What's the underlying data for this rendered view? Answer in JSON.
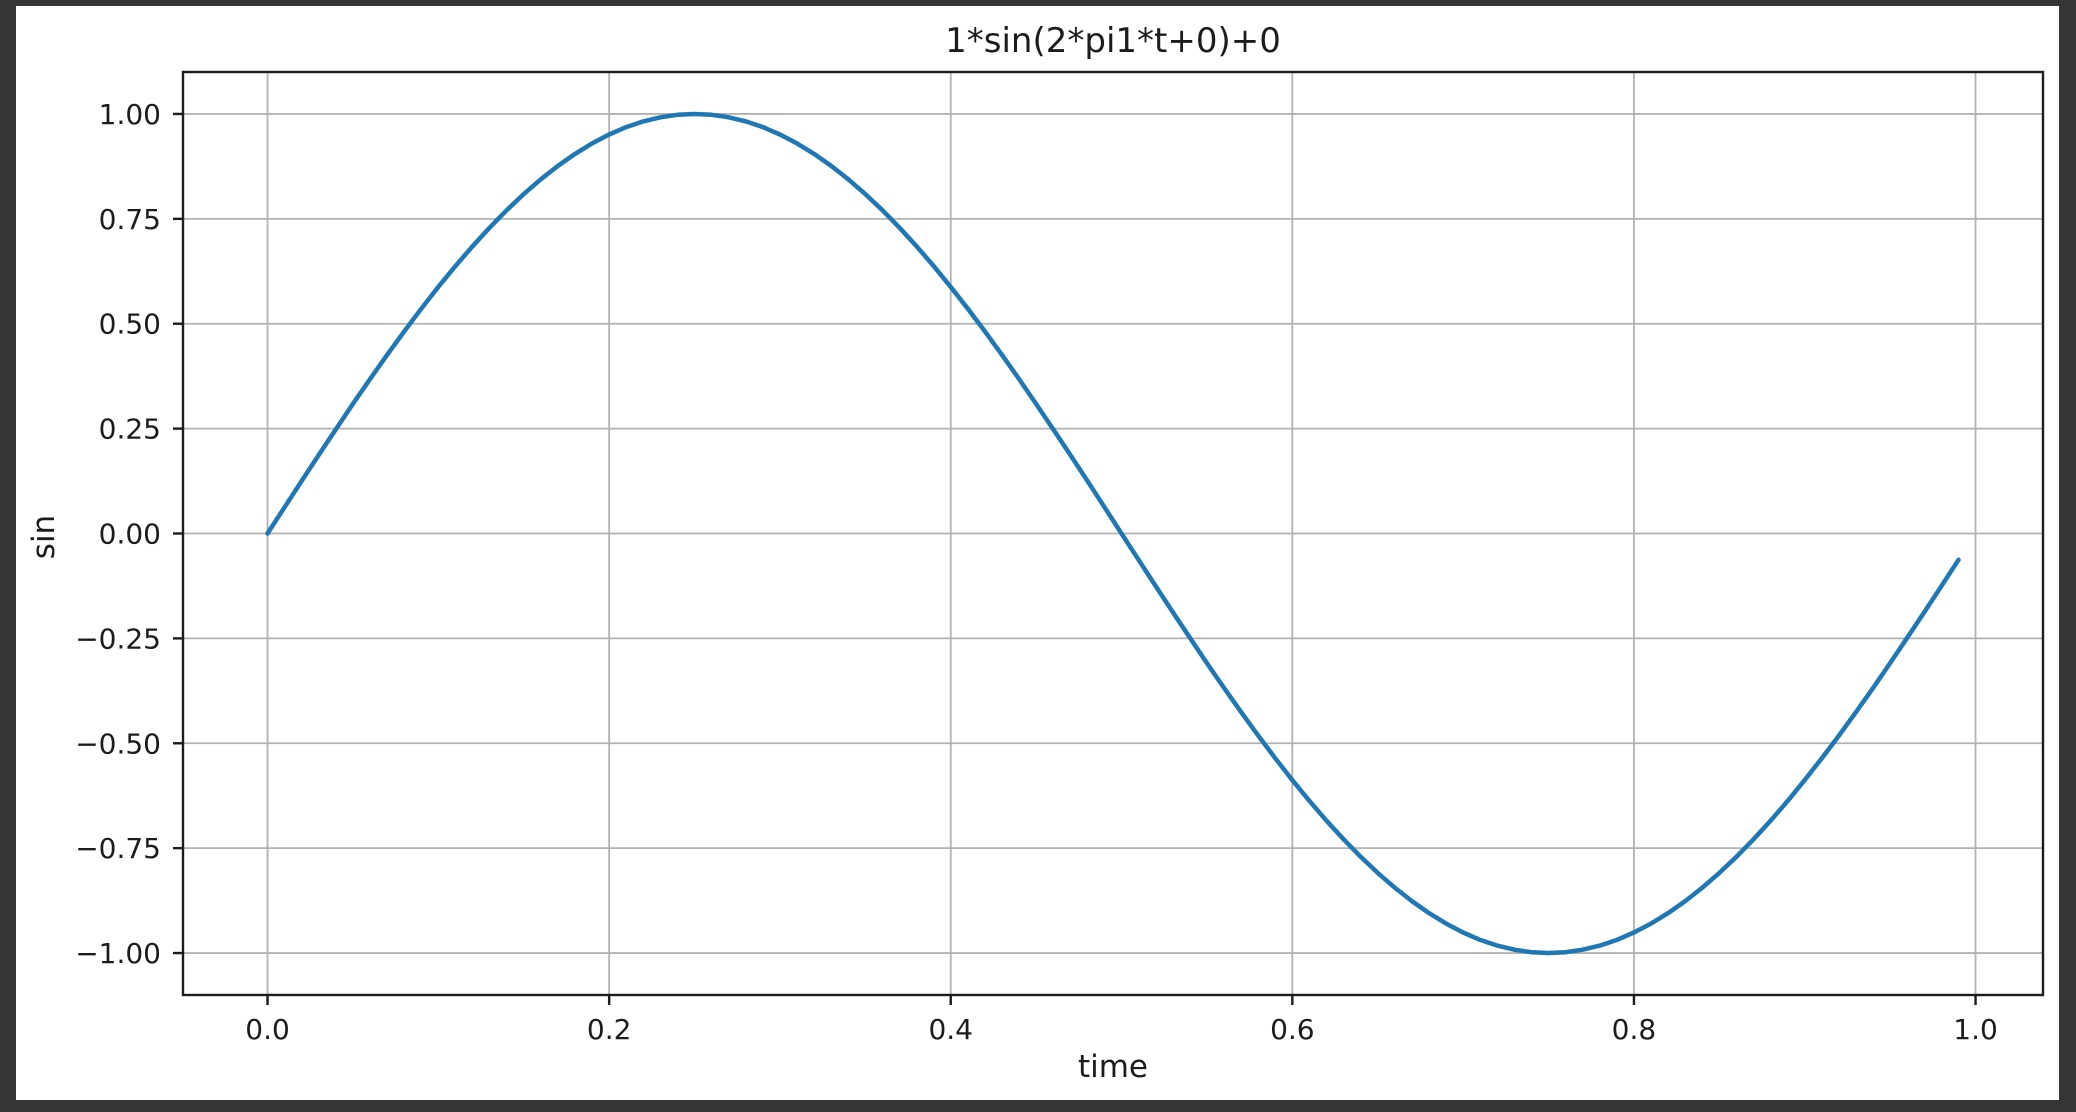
{
  "window": {
    "surround_color": "#353535",
    "figure_background": "#ffffff"
  },
  "chart_data": {
    "type": "line",
    "title": "1*sin(2*pi1*t+0)+0",
    "xlabel": "time",
    "ylabel": "sin",
    "xlim": [
      -0.0495,
      1.0395
    ],
    "ylim": [
      -1.1,
      1.1
    ],
    "grid": true,
    "legend": "none",
    "line_color": "#1f77b4",
    "grid_color": "#b2b2b2",
    "spine_color": "#1c1c1c",
    "xticks": [
      0.0,
      0.2,
      0.4,
      0.6,
      0.8,
      1.0
    ],
    "xtick_labels": [
      "0.0",
      "0.2",
      "0.4",
      "0.6",
      "0.8",
      "1.0"
    ],
    "yticks": [
      -1.0,
      -0.75,
      -0.5,
      -0.25,
      0.0,
      0.25,
      0.5,
      0.75,
      1.0
    ],
    "ytick_labels": [
      "−1.00",
      "−0.75",
      "−0.50",
      "−0.25",
      "0.00",
      "0.25",
      "0.50",
      "0.75",
      "1.00"
    ],
    "series": [
      {
        "name": "sin",
        "x": [
          0.0,
          0.01,
          0.02,
          0.03,
          0.04,
          0.05,
          0.06,
          0.07,
          0.08,
          0.09,
          0.1,
          0.11,
          0.12,
          0.13,
          0.14,
          0.15,
          0.16,
          0.17,
          0.18,
          0.19,
          0.2,
          0.21,
          0.22,
          0.23,
          0.24,
          0.25,
          0.26,
          0.27,
          0.28,
          0.29,
          0.3,
          0.31,
          0.32,
          0.33,
          0.34,
          0.35,
          0.36,
          0.37,
          0.38,
          0.39,
          0.4,
          0.41,
          0.42,
          0.43,
          0.44,
          0.45,
          0.46,
          0.47,
          0.48,
          0.49,
          0.5,
          0.51,
          0.52,
          0.53,
          0.54,
          0.55,
          0.56,
          0.57,
          0.58,
          0.59,
          0.6,
          0.61,
          0.62,
          0.63,
          0.64,
          0.65,
          0.66,
          0.67,
          0.68,
          0.69,
          0.7,
          0.71,
          0.72,
          0.73,
          0.74,
          0.75,
          0.76,
          0.77,
          0.78,
          0.79,
          0.8,
          0.81,
          0.82,
          0.83,
          0.84,
          0.85,
          0.86,
          0.87,
          0.88,
          0.89,
          0.9,
          0.91,
          0.92,
          0.93,
          0.94,
          0.95,
          0.96,
          0.97,
          0.98,
          0.99
        ],
        "y": [
          0.0,
          0.0628,
          0.1253,
          0.1874,
          0.2487,
          0.309,
          0.3681,
          0.4258,
          0.4818,
          0.5358,
          0.5878,
          0.6374,
          0.6845,
          0.729,
          0.7705,
          0.809,
          0.8443,
          0.8763,
          0.9048,
          0.9298,
          0.9511,
          0.9686,
          0.9823,
          0.9921,
          0.998,
          1.0,
          0.998,
          0.9921,
          0.9823,
          0.9686,
          0.9511,
          0.9298,
          0.9048,
          0.8763,
          0.8443,
          0.809,
          0.7705,
          0.729,
          0.6845,
          0.6374,
          0.5878,
          0.5358,
          0.4818,
          0.4258,
          0.3681,
          0.309,
          0.2487,
          0.1874,
          0.1253,
          0.0628,
          0.0,
          -0.0628,
          -0.1253,
          -0.1874,
          -0.2487,
          -0.309,
          -0.3681,
          -0.4258,
          -0.4818,
          -0.5358,
          -0.5878,
          -0.6374,
          -0.6845,
          -0.729,
          -0.7705,
          -0.809,
          -0.8443,
          -0.8763,
          -0.9048,
          -0.9298,
          -0.9511,
          -0.9686,
          -0.9823,
          -0.9921,
          -0.998,
          -1.0,
          -0.998,
          -0.9921,
          -0.9823,
          -0.9686,
          -0.9511,
          -0.9298,
          -0.9048,
          -0.8763,
          -0.8443,
          -0.809,
          -0.7705,
          -0.729,
          -0.6845,
          -0.6374,
          -0.5878,
          -0.5358,
          -0.4818,
          -0.4258,
          -0.3681,
          -0.309,
          -0.2487,
          -0.1874,
          -0.1253,
          -0.0628
        ]
      }
    ]
  }
}
